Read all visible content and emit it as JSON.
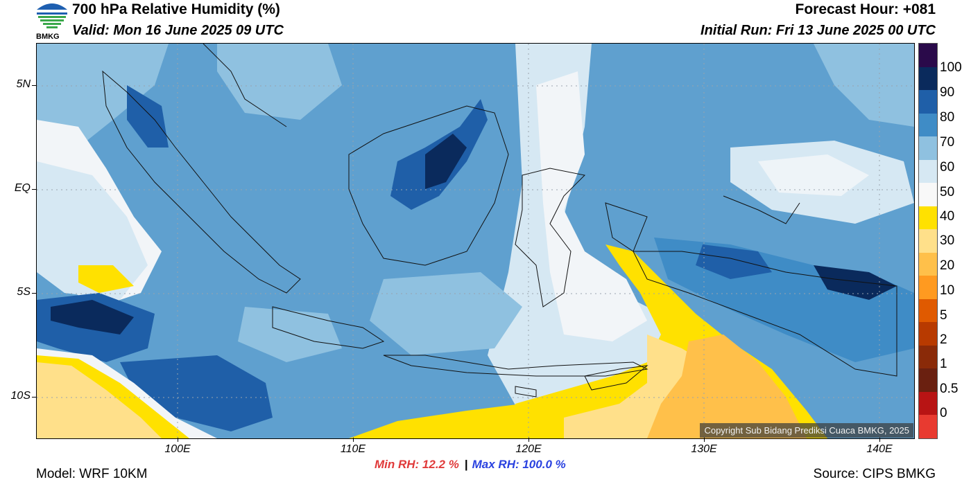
{
  "header": {
    "title": "700 hPa Relative Humidity (%)",
    "valid": "Valid: Mon 16 June 2025 09 UTC",
    "forecast_hour": "Forecast Hour: +081",
    "initial_run": "Initial Run: Fri 13 June 2025 00 UTC",
    "logo_text": "BMKG"
  },
  "map": {
    "lat_ticks": [
      "5N",
      "EQ",
      "5S",
      "10S"
    ],
    "lon_ticks": [
      "100E",
      "110E",
      "120E",
      "130E",
      "140E"
    ],
    "lat_range": [
      -12,
      7
    ],
    "lon_range": [
      92,
      142
    ],
    "copyright": "Copyright Sub Bidang Prediksi Cuaca BMKG, 2025"
  },
  "colorbar": {
    "labels": [
      "100",
      "90",
      "80",
      "70",
      "60",
      "50",
      "40",
      "30",
      "20",
      "10",
      "5",
      "2",
      "1",
      "0.5",
      "0"
    ],
    "colors": [
      "#2a0a4a",
      "#0a2a5c",
      "#1f5fa8",
      "#3f8cc6",
      "#8fc1e0",
      "#d6e8f3",
      "#f8f8f8",
      "#ffe100",
      "#ffe08a",
      "#ffc04a",
      "#ff9a20",
      "#e05a00",
      "#b83a00",
      "#8a2a08",
      "#6a2010",
      "#b81414",
      "#e83a30"
    ]
  },
  "footer": {
    "min_rh": "Min RH:  12.2 %",
    "separator": "|",
    "max_rh": "Max RH: 100.0 %",
    "model": "Model: WRF 10KM",
    "source": "Source: CIPS BMKG"
  }
}
